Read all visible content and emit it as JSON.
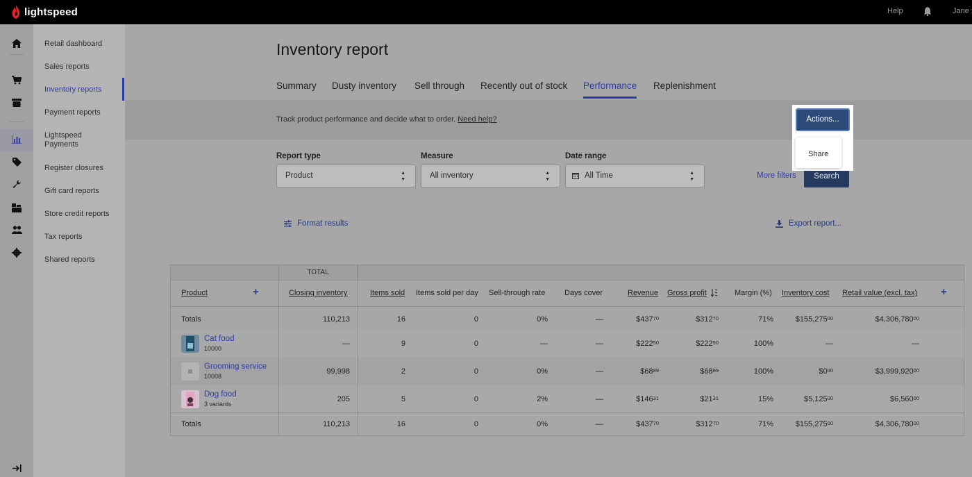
{
  "topbar": {
    "brand": "lightspeed",
    "help": "Help",
    "user": "Jane S"
  },
  "rail_icons": [
    "home-icon",
    "cart-icon",
    "register-icon",
    "reports-icon",
    "tag-icon",
    "wrench-icon",
    "inventory-icon",
    "customers-icon",
    "settings-icon",
    "expand-icon"
  ],
  "sidebar": {
    "items": [
      {
        "label": "Retail dashboard"
      },
      {
        "label": "Sales reports"
      },
      {
        "label": "Inventory reports"
      },
      {
        "label": "Payment reports"
      },
      {
        "label": "Lightspeed Payments"
      },
      {
        "label": "Register closures"
      },
      {
        "label": "Gift card reports"
      },
      {
        "label": "Store credit reports"
      },
      {
        "label": "Tax reports"
      },
      {
        "label": "Shared reports"
      }
    ],
    "active_index": 2
  },
  "page": {
    "title": "Inventory report",
    "tabs": [
      "Summary",
      "Dusty inventory",
      "Sell through",
      "Recently out of stock",
      "Performance",
      "Replenishment"
    ],
    "active_tab": "Performance",
    "description": "Track product performance and decide what to order.",
    "help_link": "Need help?"
  },
  "actions": {
    "button": "Actions...",
    "menu": [
      "Share"
    ]
  },
  "filters": {
    "report_type": {
      "label": "Report type",
      "value": "Product"
    },
    "measure": {
      "label": "Measure",
      "value": "All inventory"
    },
    "date_range": {
      "label": "Date range",
      "value": "All Time"
    },
    "more_filters": "More filters",
    "search": "Search"
  },
  "toolbar": {
    "format": "Format results",
    "export": "Export report..."
  },
  "table": {
    "group_header": "TOTAL",
    "columns": [
      "Product",
      "Closing inventory",
      "Items sold",
      "Items sold per day",
      "Sell-through rate",
      "Days cover",
      "Revenue",
      "Gross profit",
      "Margin (%)",
      "Inventory cost",
      "Retail value (excl. tax)"
    ],
    "totals_top": {
      "label": "Totals",
      "closing": "110,213",
      "sold": "16",
      "per_day": "0",
      "sell_through": "0%",
      "days_cover": "—",
      "revenue": "$437",
      "revenue_c": "70",
      "profit": "$312",
      "profit_c": "70",
      "margin": "71%",
      "cost": "$155,275",
      "cost_c": "00",
      "retail": "$4,306,780",
      "retail_c": "00"
    },
    "rows": [
      {
        "name": "Cat food",
        "sub": "10000",
        "closing": "—",
        "sold": "9",
        "per_day": "0",
        "sell_through": "—",
        "days_cover": "—",
        "revenue": "$222",
        "revenue_c": "50",
        "profit": "$222",
        "profit_c": "50",
        "margin": "100%",
        "cost": "—",
        "cost_c": "",
        "retail": "—",
        "retail_c": ""
      },
      {
        "name": "Grooming service",
        "sub": "10008",
        "closing": "99,998",
        "sold": "2",
        "per_day": "0",
        "sell_through": "0%",
        "days_cover": "—",
        "revenue": "$68",
        "revenue_c": "89",
        "profit": "$68",
        "profit_c": "89",
        "margin": "100%",
        "cost": "$0",
        "cost_c": "00",
        "retail": "$3,999,920",
        "retail_c": "00"
      },
      {
        "name": "Dog food",
        "sub": "3 variants",
        "closing": "205",
        "sold": "5",
        "per_day": "0",
        "sell_through": "2%",
        "days_cover": "—",
        "revenue": "$146",
        "revenue_c": "31",
        "profit": "$21",
        "profit_c": "31",
        "margin": "15%",
        "cost": "$5,125",
        "cost_c": "00",
        "retail": "$6,560",
        "retail_c": "00"
      }
    ],
    "totals_bottom": {
      "label": "Totals",
      "closing": "110,213",
      "sold": "16",
      "per_day": "0",
      "sell_through": "0%",
      "days_cover": "—",
      "revenue": "$437",
      "revenue_c": "70",
      "profit": "$312",
      "profit_c": "70",
      "margin": "71%",
      "cost": "$155,275",
      "cost_c": "00",
      "retail": "$4,306,780",
      "retail_c": "00"
    }
  },
  "colors": {
    "accent": "#2b3ba8",
    "button": "#243a5f",
    "topbar": "#000000"
  }
}
